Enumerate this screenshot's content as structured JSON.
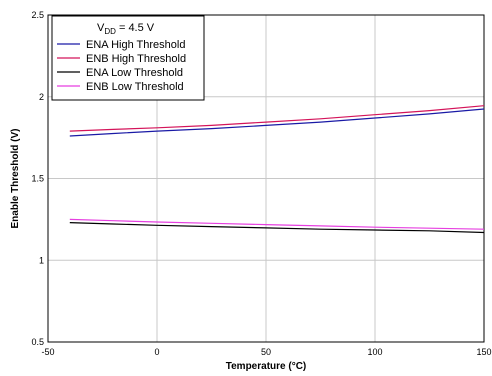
{
  "chart_data": {
    "type": "line",
    "xlabel": "Temperature (°C)",
    "ylabel": "Enable Threshold (V)",
    "xlim": [
      -50,
      150
    ],
    "ylim": [
      0.5,
      2.5
    ],
    "xticks": [
      -50,
      0,
      50,
      100,
      150
    ],
    "yticks": [
      0.5,
      1,
      1.5,
      2,
      2.5
    ],
    "grid": true,
    "legend": {
      "placement": "top-left",
      "header": {
        "main": "V",
        "sub": "DD",
        "rest": " = 4.5 V"
      }
    },
    "series": [
      {
        "name": "ENA High Threshold",
        "color": "#1a1aa6",
        "x": [
          -40,
          -20,
          0,
          25,
          50,
          75,
          100,
          125,
          150
        ],
        "y": [
          1.76,
          1.775,
          1.79,
          1.805,
          1.825,
          1.845,
          1.87,
          1.895,
          1.925
        ]
      },
      {
        "name": "ENB High Threshold",
        "color": "#d4145a",
        "x": [
          -40,
          -20,
          0,
          25,
          50,
          75,
          100,
          125,
          150
        ],
        "y": [
          1.79,
          1.8,
          1.81,
          1.825,
          1.845,
          1.865,
          1.89,
          1.915,
          1.945
        ]
      },
      {
        "name": "ENA Low Threshold",
        "color": "#000000",
        "x": [
          -40,
          -20,
          0,
          25,
          50,
          75,
          100,
          125,
          150
        ],
        "y": [
          1.23,
          1.222,
          1.214,
          1.206,
          1.198,
          1.19,
          1.185,
          1.18,
          1.17
        ]
      },
      {
        "name": "ENB Low Threshold",
        "color": "#e63fe0",
        "x": [
          -40,
          -20,
          0,
          25,
          50,
          75,
          100,
          125,
          150
        ],
        "y": [
          1.25,
          1.242,
          1.234,
          1.226,
          1.218,
          1.21,
          1.202,
          1.196,
          1.19
        ]
      }
    ]
  }
}
